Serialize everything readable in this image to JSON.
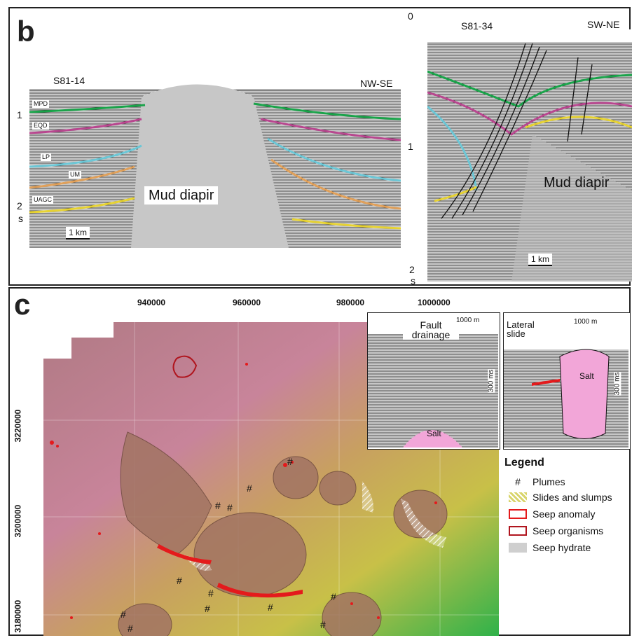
{
  "panel_b": {
    "letter": "b",
    "left": {
      "line_id": "S81-14",
      "direction": "NW-SE",
      "ticks": [
        "1",
        "2",
        "s"
      ],
      "horizons": [
        {
          "label": "MPD",
          "color": "#1aa34a"
        },
        {
          "label": "EQD",
          "color": "#b8478f"
        },
        {
          "label": "LP",
          "color": "#6cc7d6"
        },
        {
          "label": "UM",
          "color": "#e0a05a"
        },
        {
          "label": "UAGC",
          "color": "#e6d233"
        }
      ],
      "body_label": "Mud diapir",
      "scale": "1 km"
    },
    "right": {
      "line_id": "S81-34",
      "direction": "SW-NE",
      "ticks": [
        "0",
        "1",
        "2",
        "s"
      ],
      "body_label": "Mud diapir",
      "scale": "1 km"
    }
  },
  "panel_c": {
    "letter": "c",
    "x_ticks": [
      "940000",
      "960000",
      "980000",
      "1000000"
    ],
    "y_ticks": [
      "3220000",
      "3200000",
      "3180000"
    ],
    "inset1": {
      "title": "Fault drainage",
      "scale": "1000 m",
      "vscale": "300 ms",
      "salt": "Salt",
      "salt_color": "#f2a6d8"
    },
    "inset2": {
      "title": "Lateral slide",
      "scale": "1000 m",
      "vscale": "300 ms",
      "salt": "Salt",
      "salt_color": "#f2a6d8"
    },
    "legend": {
      "title": "Legend",
      "items": [
        {
          "label": "Plumes",
          "symbol": "#"
        },
        {
          "label": "Slides and slumps",
          "swatch": "hatch"
        },
        {
          "label": "Seep anomaly",
          "color": "#e41a1c"
        },
        {
          "label": "Seep organisms",
          "color": "#b0151e"
        },
        {
          "label": "Seep hydrate",
          "color": "#cfcfcf"
        }
      ]
    }
  }
}
